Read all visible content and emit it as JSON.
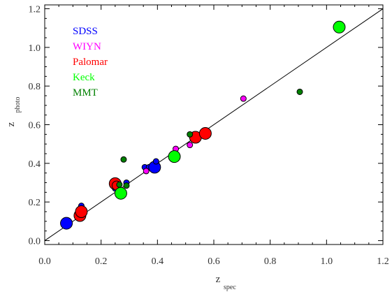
{
  "chart_data": {
    "type": "scatter",
    "xlabel": "z",
    "xlabel_sub": "spec",
    "ylabel": "z",
    "ylabel_sub": "photo",
    "xlim": [
      0.0,
      1.2
    ],
    "ylim": [
      -0.02,
      1.22
    ],
    "x_ticks": [
      "0.0",
      "0.2",
      "0.4",
      "0.6",
      "0.8",
      "1.0",
      "1.2"
    ],
    "y_ticks": [
      "0.0",
      "0.2",
      "0.4",
      "0.6",
      "0.8",
      "1.0",
      "1.2"
    ],
    "reference_line": {
      "from": [
        0.0,
        0.0
      ],
      "to": [
        1.2,
        1.2
      ]
    },
    "legend_position": "top-left",
    "series": [
      {
        "name": "SDSS",
        "color": "#0000ff",
        "points": [
          {
            "x": 0.077,
            "y": 0.09,
            "size": "large"
          },
          {
            "x": 0.13,
            "y": 0.18,
            "size": "small"
          },
          {
            "x": 0.25,
            "y": 0.27,
            "size": "small"
          },
          {
            "x": 0.29,
            "y": 0.3,
            "size": "small"
          },
          {
            "x": 0.355,
            "y": 0.38,
            "size": "small"
          },
          {
            "x": 0.37,
            "y": 0.38,
            "size": "small"
          },
          {
            "x": 0.39,
            "y": 0.38,
            "size": "large"
          },
          {
            "x": 0.395,
            "y": 0.41,
            "size": "small"
          },
          {
            "x": 0.45,
            "y": 0.43,
            "size": "small"
          }
        ]
      },
      {
        "name": "WIYN",
        "color": "#ff00ff",
        "points": [
          {
            "x": 0.36,
            "y": 0.36,
            "size": "small"
          },
          {
            "x": 0.465,
            "y": 0.475,
            "size": "small"
          },
          {
            "x": 0.515,
            "y": 0.495,
            "size": "small"
          },
          {
            "x": 0.54,
            "y": 0.52,
            "size": "small"
          },
          {
            "x": 0.705,
            "y": 0.735,
            "size": "small"
          }
        ]
      },
      {
        "name": "Palomar",
        "color": "#ff0000",
        "points": [
          {
            "x": 0.125,
            "y": 0.13,
            "size": "large"
          },
          {
            "x": 0.13,
            "y": 0.15,
            "size": "large"
          },
          {
            "x": 0.25,
            "y": 0.295,
            "size": "large"
          },
          {
            "x": 0.255,
            "y": 0.285,
            "size": "medium"
          },
          {
            "x": 0.535,
            "y": 0.535,
            "size": "large"
          },
          {
            "x": 0.57,
            "y": 0.555,
            "size": "large"
          }
        ]
      },
      {
        "name": "Keck",
        "color": "#00ff00",
        "points": [
          {
            "x": 0.27,
            "y": 0.245,
            "size": "large"
          },
          {
            "x": 0.46,
            "y": 0.435,
            "size": "large"
          },
          {
            "x": 1.045,
            "y": 1.105,
            "size": "large"
          }
        ]
      },
      {
        "name": "MMT",
        "color": "#008000",
        "points": [
          {
            "x": 0.265,
            "y": 0.29,
            "size": "small"
          },
          {
            "x": 0.28,
            "y": 0.42,
            "size": "small"
          },
          {
            "x": 0.29,
            "y": 0.285,
            "size": "small"
          },
          {
            "x": 0.515,
            "y": 0.55,
            "size": "small"
          },
          {
            "x": 0.905,
            "y": 0.77,
            "size": "small"
          }
        ]
      }
    ]
  }
}
